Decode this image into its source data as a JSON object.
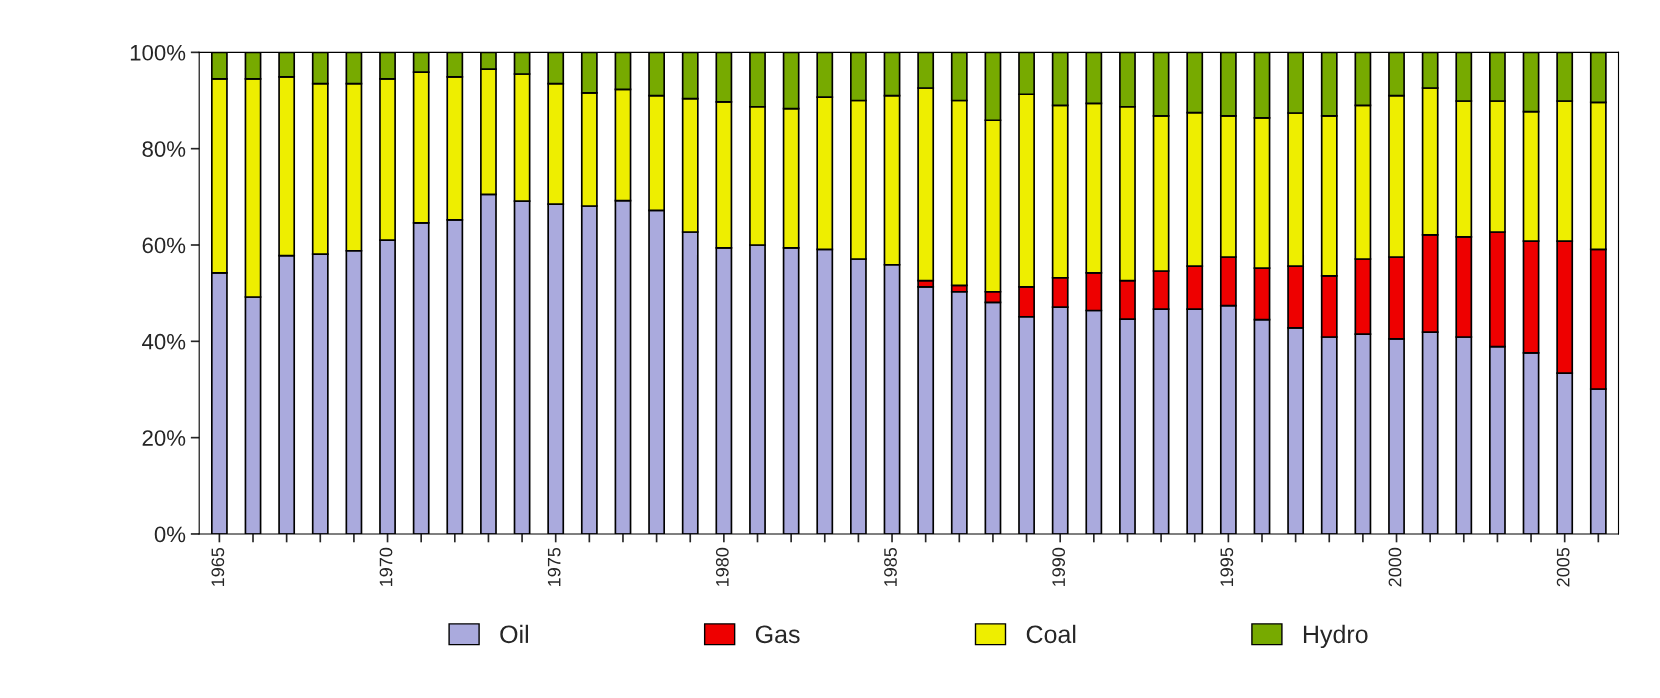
{
  "chart_data": {
    "type": "bar",
    "stacked": true,
    "categories": [
      "1965",
      null,
      null,
      null,
      null,
      "1970",
      null,
      null,
      null,
      null,
      "1975",
      null,
      null,
      null,
      null,
      "1980",
      null,
      null,
      null,
      null,
      "1985",
      null,
      null,
      null,
      null,
      "1990",
      null,
      null,
      null,
      null,
      "1995",
      null,
      null,
      null,
      null,
      "2000",
      null,
      null,
      null,
      null,
      "2005",
      null
    ],
    "series": [
      {
        "name": "Oil",
        "color": "#aaaadd",
        "values": [
          54.2,
          49.2,
          57.8,
          58.1,
          58.8,
          61,
          64.6,
          65.2,
          70.5,
          69.1,
          68.5,
          68.1,
          69.2,
          67.2,
          62.7,
          59.4,
          60,
          59.4,
          59.1,
          57.1,
          55.9,
          51.3,
          50.3,
          48.1,
          45.1,
          47.1,
          46.4,
          44.6,
          46.7,
          46.7,
          47.4,
          44.5,
          42.8,
          40.9,
          41.5,
          40.5,
          41.9,
          40.9,
          38.9,
          37.6,
          33.4,
          30.1
        ]
      },
      {
        "name": "Gas",
        "color": "#ee0000",
        "values": [
          null,
          null,
          null,
          null,
          null,
          null,
          null,
          null,
          null,
          null,
          null,
          null,
          null,
          null,
          null,
          null,
          null,
          null,
          null,
          null,
          null,
          1.3,
          1.3,
          2.2,
          6.2,
          6.1,
          7.8,
          8,
          7.9,
          8.9,
          10.1,
          10.7,
          12.8,
          12.7,
          15.6,
          17,
          20.2,
          20.8,
          23.8,
          23.2,
          27.4,
          29
        ]
      },
      {
        "name": "Coal",
        "color": "#eeee00",
        "values": [
          40.3,
          45.3,
          37.1,
          35.4,
          34.7,
          33.5,
          31.3,
          29.7,
          26,
          26.4,
          25,
          23.5,
          23.1,
          23.8,
          27.7,
          30.3,
          28.7,
          28.9,
          31.6,
          32.9,
          35.1,
          40,
          38.4,
          35.6,
          40,
          35.8,
          35.2,
          36.1,
          32.2,
          31.9,
          29.3,
          31.2,
          31.8,
          33.2,
          31.9,
          33.5,
          30.5,
          28.2,
          27.2,
          26.9,
          29.1,
          30.5
        ]
      },
      {
        "name": "Hydro",
        "color": "#77aa00",
        "values": [
          5.5,
          5.5,
          5.1,
          6.5,
          6.5,
          5.5,
          4.1,
          5.1,
          3.5,
          4.5,
          6.5,
          8.4,
          7.7,
          9,
          9.6,
          10.3,
          11.3,
          11.7,
          9.3,
          10,
          9,
          7.4,
          10,
          14.1,
          8.7,
          11,
          10.6,
          11.3,
          13.2,
          12.5,
          13.2,
          13.6,
          12.6,
          13.2,
          11,
          9,
          7.4,
          10.1,
          10.1,
          12.3,
          10.1,
          10.4
        ]
      }
    ],
    "ylim": [
      0,
      100
    ],
    "yticks": [
      {
        "value": 0,
        "label": "0%"
      },
      {
        "value": 20,
        "label": "20%"
      },
      {
        "value": 40,
        "label": "40%"
      },
      {
        "value": 60,
        "label": "60%"
      },
      {
        "value": 80,
        "label": "80%"
      },
      {
        "value": 100,
        "label": "100%"
      }
    ],
    "grid": false,
    "legend": "bottom"
  }
}
